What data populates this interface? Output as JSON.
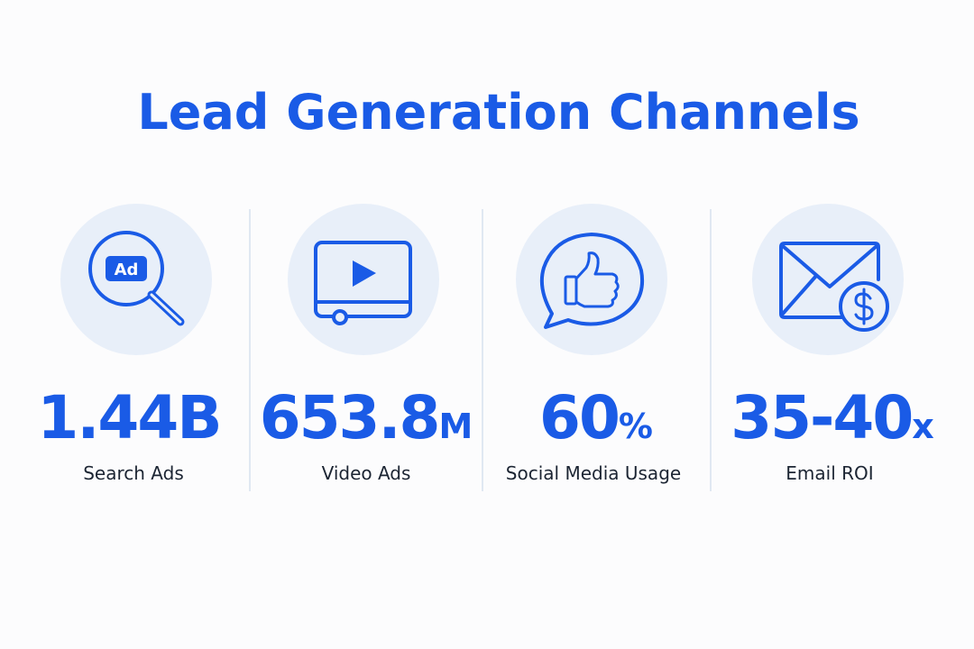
{
  "title": "Lead Generation Channels",
  "stats": [
    {
      "badge": "Ad",
      "value": "1.44B",
      "label": "Search Ads"
    },
    {
      "value": "653.8",
      "unit": "M",
      "label": "Video Ads"
    },
    {
      "value": "60",
      "unit": "%",
      "label": "Social Media Usage"
    },
    {
      "value": "35-40",
      "unit": "x",
      "label": "Email ROI"
    }
  ]
}
